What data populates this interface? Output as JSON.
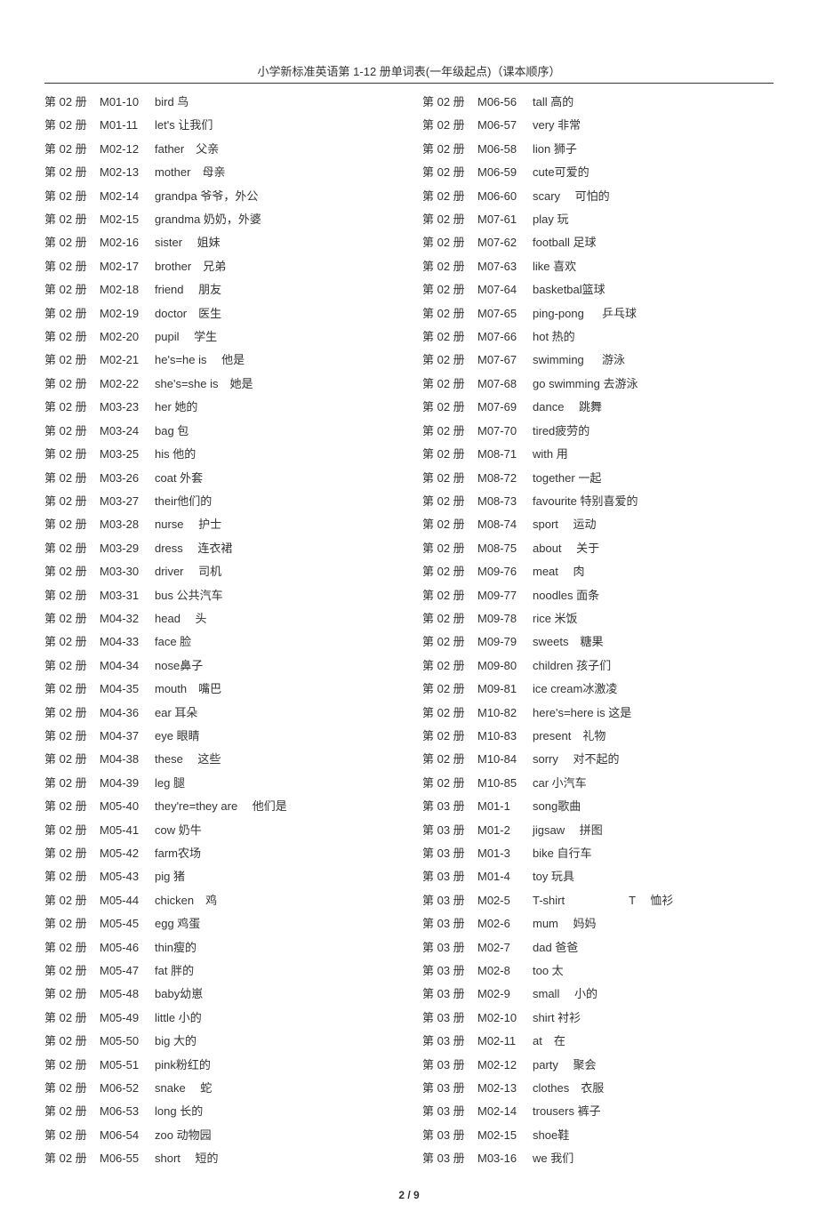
{
  "header": "小学新标准英语第 1-12 册单词表(一年级起点)（课本顺序）",
  "footer": "2 / 9",
  "left": [
    {
      "book": "第 02 册",
      "module": "M01-10",
      "word": "bird 鸟"
    },
    {
      "book": "第 02 册",
      "module": "M01-11",
      "word": "let's 让我们"
    },
    {
      "book": "第 02 册",
      "module": "M02-12",
      "word": "father　父亲"
    },
    {
      "book": "第 02 册",
      "module": "M02-13",
      "word": "mother　母亲"
    },
    {
      "book": "第 02 册",
      "module": "M02-14",
      "word": "grandpa 爷爷，外公"
    },
    {
      "book": "第 02 册",
      "module": "M02-15",
      "word": "grandma 奶奶，外婆"
    },
    {
      "book": "第 02 册",
      "module": "M02-16",
      "word": "sister　  姐妹"
    },
    {
      "book": "第 02 册",
      "module": "M02-17",
      "word": "brother　兄弟"
    },
    {
      "book": "第 02 册",
      "module": "M02-18",
      "word": "friend　 朋友"
    },
    {
      "book": "第 02 册",
      "module": "M02-19",
      "word": "doctor　医生"
    },
    {
      "book": "第 02 册",
      "module": "M02-20",
      "word": "pupil　  学生"
    },
    {
      "book": "第 02 册",
      "module": "M02-21",
      "word": "he's=he is　  他是"
    },
    {
      "book": "第 02 册",
      "module": "M02-22",
      "word": "she's=she is　她是"
    },
    {
      "book": "第 02 册",
      "module": "M03-23",
      "word": "her 她的"
    },
    {
      "book": "第 02 册",
      "module": "M03-24",
      "word": "bag 包"
    },
    {
      "book": "第 02 册",
      "module": "M03-25",
      "word": "his  他的"
    },
    {
      "book": "第 02 册",
      "module": "M03-26",
      "word": "coat 外套"
    },
    {
      "book": "第 02 册",
      "module": "M03-27",
      "word": "their他们的"
    },
    {
      "book": "第 02 册",
      "module": "M03-28",
      "word": "nurse　  护士"
    },
    {
      "book": "第 02 册",
      "module": "M03-29",
      "word": "dress　  连衣裙"
    },
    {
      "book": "第 02 册",
      "module": "M03-30",
      "word": "driver　 司机"
    },
    {
      "book": "第 02 册",
      "module": "M03-31",
      "word": "bus 公共汽车"
    },
    {
      "book": "第 02 册",
      "module": "M04-32",
      "word": "head　  头"
    },
    {
      "book": "第 02 册",
      "module": "M04-33",
      "word": "face 脸"
    },
    {
      "book": "第 02 册",
      "module": "M04-34",
      "word": "nose鼻子"
    },
    {
      "book": "第 02 册",
      "module": "M04-35",
      "word": "mouth　嘴巴"
    },
    {
      "book": "第 02 册",
      "module": "M04-36",
      "word": "ear 耳朵"
    },
    {
      "book": "第 02 册",
      "module": "M04-37",
      "word": "eye 眼睛"
    },
    {
      "book": "第 02 册",
      "module": "M04-38",
      "word": "these　  这些"
    },
    {
      "book": "第 02 册",
      "module": "M04-39",
      "word": "leg  腿"
    },
    {
      "book": "第 02 册",
      "module": "M05-40",
      "word": "they're=they are　  他们是"
    },
    {
      "book": "第 02 册",
      "module": "M05-41",
      "word": "cow 奶牛"
    },
    {
      "book": "第 02 册",
      "module": "M05-42",
      "word": "farm农场"
    },
    {
      "book": "第 02 册",
      "module": "M05-43",
      "word": "pig  猪"
    },
    {
      "book": "第 02 册",
      "module": "M05-44",
      "word": "chicken　鸡"
    },
    {
      "book": "第 02 册",
      "module": "M05-45",
      "word": "egg 鸡蛋"
    },
    {
      "book": "第 02 册",
      "module": "M05-46",
      "word": "thin瘦的"
    },
    {
      "book": "第 02 册",
      "module": "M05-47",
      "word": "fat  胖的"
    },
    {
      "book": "第 02 册",
      "module": "M05-48",
      "word": "baby幼崽"
    },
    {
      "book": "第 02 册",
      "module": "M05-49",
      "word": "little 小的"
    },
    {
      "book": "第 02 册",
      "module": "M05-50",
      "word": "big  大的"
    },
    {
      "book": "第 02 册",
      "module": "M05-51",
      "word": "pink粉红的"
    },
    {
      "book": "第 02 册",
      "module": "M06-52",
      "word": "snake　  蛇"
    },
    {
      "book": "第 02 册",
      "module": "M06-53",
      "word": "long 长的"
    },
    {
      "book": "第 02 册",
      "module": "M06-54",
      "word": "zoo 动物园"
    },
    {
      "book": "第 02 册",
      "module": "M06-55",
      "word": "short　  短的"
    }
  ],
  "right": [
    {
      "book": "第 02 册",
      "module": "M06-56",
      "word": "tall  高的"
    },
    {
      "book": "第 02 册",
      "module": "M06-57",
      "word": "very 非常"
    },
    {
      "book": "第 02 册",
      "module": "M06-58",
      "word": "lion 狮子"
    },
    {
      "book": "第 02 册",
      "module": "M06-59",
      "word": "cute可爱的"
    },
    {
      "book": "第 02 册",
      "module": "M06-60",
      "word": "scary　  可怕的"
    },
    {
      "book": "第 02 册",
      "module": "M07-61",
      "word": "play 玩"
    },
    {
      "book": "第 02 册",
      "module": "M07-62",
      "word": "football   足球"
    },
    {
      "book": "第 02 册",
      "module": "M07-63",
      "word": "like 喜欢"
    },
    {
      "book": "第 02 册",
      "module": "M07-64",
      "word": "basketbal篮球"
    },
    {
      "book": "第 02 册",
      "module": "M07-65",
      "word": "ping-pong 　  乒乓球"
    },
    {
      "book": "第 02 册",
      "module": "M07-66",
      "word": "hot  热的"
    },
    {
      "book": "第 02 册",
      "module": "M07-67",
      "word": "swimming 　  游泳"
    },
    {
      "book": "第 02 册",
      "module": "M07-68",
      "word": "go swimming 去游泳"
    },
    {
      "book": "第 02 册",
      "module": "M07-69",
      "word": "dance　  跳舞"
    },
    {
      "book": "第 02 册",
      "module": "M07-70",
      "word": "tired疲劳的"
    },
    {
      "book": "第 02 册",
      "module": "M08-71",
      "word": "with 用"
    },
    {
      "book": "第 02 册",
      "module": "M08-72",
      "word": "together 一起"
    },
    {
      "book": "第 02 册",
      "module": "M08-73",
      "word": "favourite 特别喜爱的"
    },
    {
      "book": "第 02 册",
      "module": "M08-74",
      "word": "sport　  运动"
    },
    {
      "book": "第 02 册",
      "module": "M08-75",
      "word": "about　 关于"
    },
    {
      "book": "第 02 册",
      "module": "M09-76",
      "word": "meat　  肉"
    },
    {
      "book": "第 02 册",
      "module": "M09-77",
      "word": "noodles  面条"
    },
    {
      "book": "第 02 册",
      "module": "M09-78",
      "word": "rice 米饭"
    },
    {
      "book": "第 02 册",
      "module": "M09-79",
      "word": "sweets　糖果"
    },
    {
      "book": "第 02 册",
      "module": "M09-80",
      "word": "children  孩子们"
    },
    {
      "book": "第 02 册",
      "module": "M09-81",
      "word": "ice cream冰激凌"
    },
    {
      "book": "第 02 册",
      "module": "M10-82",
      "word": "here's=here is 这是"
    },
    {
      "book": "第 02 册",
      "module": "M10-83",
      "word": "present　礼物"
    },
    {
      "book": "第 02 册",
      "module": "M10-84",
      "word": "sorry　  对不起的"
    },
    {
      "book": "第 02 册",
      "module": "M10-85",
      "word": "car  小汽车"
    },
    {
      "book": "第 03 册",
      "module": "M01-1",
      "word": "song歌曲"
    },
    {
      "book": "第 03 册",
      "module": "M01-2",
      "word": "jigsaw　 拼图"
    },
    {
      "book": "第 03 册",
      "module": "M01-3",
      "word": "bike 自行车"
    },
    {
      "book": "第 03 册",
      "module": "M01-4",
      "word": "toy  玩具"
    },
    {
      "book": "第 03 册",
      "module": "M02-5",
      "word": "T-shirt   　　　　　 T　  恤衫"
    },
    {
      "book": "第 03 册",
      "module": "M02-6",
      "word": "mum　  妈妈"
    },
    {
      "book": "第 03 册",
      "module": "M02-7",
      "word": "dad 爸爸"
    },
    {
      "book": "第 03 册",
      "module": "M02-8",
      "word": "too  太"
    },
    {
      "book": "第 03 册",
      "module": "M02-9",
      "word": "small　  小的"
    },
    {
      "book": "第 03 册",
      "module": "M02-10",
      "word": "shirt 衬衫"
    },
    {
      "book": "第 03 册",
      "module": "M02-11",
      "word": "at　在"
    },
    {
      "book": "第 03 册",
      "module": "M02-12",
      "word": "party　  聚会"
    },
    {
      "book": "第 03 册",
      "module": "M02-13",
      "word": "clothes　衣服"
    },
    {
      "book": "第 03 册",
      "module": "M02-14",
      "word": "trousers  裤子"
    },
    {
      "book": "第 03 册",
      "module": "M02-15",
      "word": "shoe鞋"
    },
    {
      "book": "第 03 册",
      "module": "M03-16",
      "word": "we  我们"
    }
  ]
}
